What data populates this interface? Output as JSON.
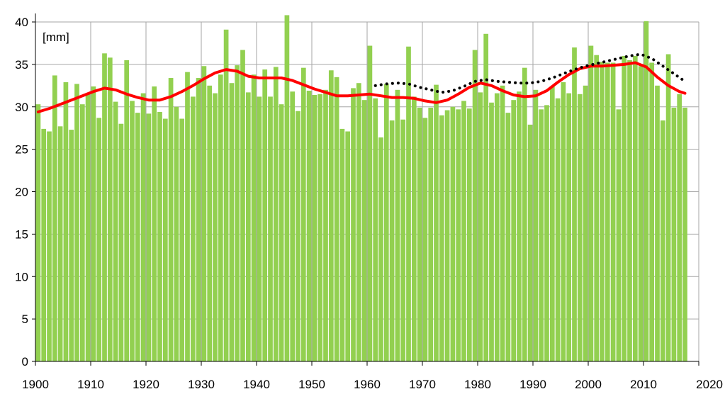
{
  "chart_data": {
    "type": "bar",
    "title": "",
    "xlabel": "",
    "ylabel": "",
    "unit_label": "[mm]",
    "xlim": [
      1900,
      2020
    ],
    "ylim": [
      0,
      40
    ],
    "x_ticks": [
      1900,
      1910,
      1920,
      1930,
      1940,
      1950,
      1960,
      1970,
      1980,
      1990,
      2000,
      2010,
      2020
    ],
    "y_ticks": [
      0,
      5,
      10,
      15,
      20,
      25,
      30,
      35,
      40
    ],
    "grid": true,
    "legend": "none",
    "colors": {
      "bars": "#92d050",
      "smooth": "#ff0000",
      "dotted": "#000000",
      "grid": "#a6a6a6",
      "axis": "#000000"
    },
    "bars": {
      "years": [
        1900,
        1901,
        1902,
        1903,
        1904,
        1905,
        1906,
        1907,
        1908,
        1909,
        1910,
        1911,
        1912,
        1913,
        1914,
        1915,
        1916,
        1917,
        1918,
        1919,
        1920,
        1921,
        1922,
        1923,
        1924,
        1925,
        1926,
        1927,
        1928,
        1929,
        1930,
        1931,
        1932,
        1933,
        1934,
        1935,
        1936,
        1937,
        1938,
        1939,
        1940,
        1941,
        1942,
        1943,
        1944,
        1945,
        1946,
        1947,
        1948,
        1949,
        1950,
        1951,
        1952,
        1953,
        1954,
        1955,
        1956,
        1957,
        1958,
        1959,
        1960,
        1961,
        1962,
        1963,
        1964,
        1965,
        1966,
        1967,
        1968,
        1969,
        1970,
        1971,
        1972,
        1973,
        1974,
        1975,
        1976,
        1977,
        1978,
        1979,
        1980,
        1981,
        1982,
        1983,
        1984,
        1985,
        1986,
        1987,
        1988,
        1989,
        1990,
        1991,
        1992,
        1993,
        1994,
        1995,
        1996,
        1997,
        1998,
        1999,
        2000,
        2001,
        2002,
        2003,
        2004,
        2005,
        2006,
        2007,
        2008,
        2009,
        2010,
        2011,
        2012,
        2013,
        2014,
        2015,
        2016,
        2017
      ],
      "values": [
        30.3,
        27.4,
        27.1,
        33.7,
        27.7,
        32.9,
        27.3,
        32.7,
        30.3,
        31.6,
        32.4,
        28.7,
        36.3,
        35.8,
        30.6,
        28.0,
        35.5,
        30.7,
        29.3,
        31.6,
        29.2,
        32.4,
        29.4,
        28.6,
        33.4,
        30.0,
        28.6,
        34.1,
        31.2,
        33.4,
        34.8,
        32.5,
        31.6,
        33.8,
        39.1,
        32.8,
        34.9,
        36.7,
        31.7,
        33.8,
        31.2,
        34.4,
        31.2,
        34.7,
        30.3,
        40.8,
        31.8,
        29.5,
        34.6,
        31.9,
        31.4,
        31.5,
        32.0,
        34.3,
        33.5,
        27.4,
        27.1,
        32.2,
        32.8,
        30.8,
        37.2,
        31.0,
        26.4,
        32.7,
        28.4,
        32.0,
        28.5,
        37.1,
        31.2,
        29.9,
        28.7,
        29.9,
        32.6,
        29.0,
        29.6,
        30.0,
        29.7,
        30.7,
        29.8,
        36.7,
        31.7,
        38.6,
        30.5,
        31.6,
        32.5,
        29.3,
        30.8,
        31.8,
        34.6,
        27.9,
        32.0,
        29.7,
        30.2,
        32.4,
        31.0,
        32.9,
        31.6,
        37.0,
        31.5,
        32.5,
        37.2,
        36.1,
        35.3,
        35.2,
        35.2,
        29.7,
        36.0,
        35.5,
        36.0,
        34.8,
        40.1,
        35.2,
        32.5,
        28.4,
        36.2,
        29.9,
        31.5,
        29.9
      ]
    },
    "series": [
      {
        "x": [
          1900,
          1902,
          1904,
          1906,
          1908,
          1910,
          1912,
          1914,
          1916,
          1918,
          1920,
          1922,
          1924,
          1926,
          1928,
          1930,
          1932,
          1934,
          1936,
          1938,
          1940,
          1942,
          1944,
          1946,
          1948,
          1950,
          1952,
          1954,
          1956,
          1958,
          1960,
          1962,
          1964,
          1966,
          1968,
          1970,
          1972,
          1974,
          1976,
          1978,
          1980,
          1982,
          1984,
          1986,
          1988,
          1990,
          1992,
          1994,
          1996,
          1998,
          2000,
          2002,
          2004,
          2006,
          2008,
          2010,
          2012,
          2014,
          2016,
          2017
        ],
        "values": [
          29.4,
          29.8,
          30.3,
          30.8,
          31.3,
          31.8,
          32.2,
          32.0,
          31.5,
          31.1,
          30.8,
          30.8,
          31.2,
          31.8,
          32.5,
          33.3,
          34.0,
          34.4,
          34.2,
          33.6,
          33.4,
          33.4,
          33.4,
          33.1,
          32.6,
          32.1,
          31.7,
          31.3,
          31.3,
          31.4,
          31.5,
          31.3,
          31.1,
          31.1,
          31.0,
          30.7,
          30.5,
          30.8,
          31.5,
          32.3,
          32.8,
          32.5,
          31.9,
          31.4,
          31.2,
          31.3,
          31.9,
          32.9,
          33.8,
          34.5,
          34.8,
          34.8,
          34.9,
          35.0,
          35.2,
          34.7,
          33.5,
          32.5,
          31.8,
          31.6
        ]
      },
      {
        "x": [
          1961,
          1963,
          1965,
          1967,
          1969,
          1971,
          1973,
          1975,
          1977,
          1979,
          1981,
          1983,
          1985,
          1987,
          1989,
          1991,
          1993,
          1995,
          1997,
          1999,
          2001,
          2003,
          2005,
          2007,
          2009,
          2011,
          2013,
          2015,
          2017
        ],
        "values": [
          32.5,
          32.7,
          32.8,
          32.7,
          32.3,
          32.0,
          31.7,
          31.9,
          32.4,
          33.0,
          33.2,
          33.0,
          32.9,
          32.8,
          32.8,
          33.0,
          33.4,
          33.9,
          34.4,
          34.8,
          35.1,
          35.4,
          35.7,
          36.0,
          36.2,
          35.7,
          34.8,
          33.9,
          33.0
        ]
      }
    ]
  }
}
